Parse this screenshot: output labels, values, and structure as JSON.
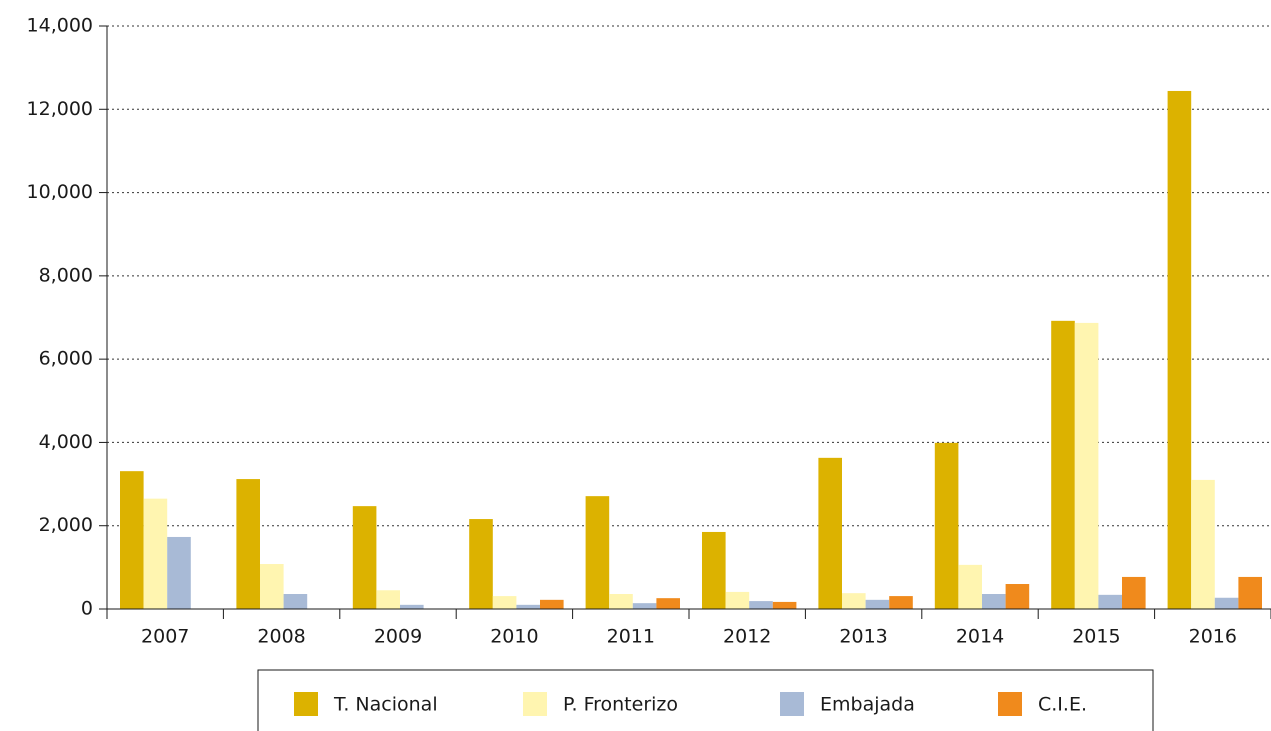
{
  "chart_data": {
    "type": "bar",
    "categories": [
      "2007",
      "2008",
      "2009",
      "2010",
      "2011",
      "2012",
      "2013",
      "2014",
      "2015",
      "2016"
    ],
    "series": [
      {
        "name": "T. Nacional",
        "color": "#dcb200",
        "values": [
          3310,
          3120,
          2470,
          2160,
          2710,
          1850,
          3630,
          3990,
          6920,
          12440
        ]
      },
      {
        "name": "P. Fronterizo",
        "color": "#fff5b0",
        "values": [
          2650,
          1080,
          450,
          310,
          360,
          410,
          380,
          1060,
          6870,
          3100
        ]
      },
      {
        "name": "Embajada",
        "color": "#a8bad6",
        "values": [
          1730,
          360,
          100,
          100,
          140,
          190,
          220,
          360,
          340,
          270
        ]
      },
      {
        "name": "C.I.E.",
        "color": "#f08a1c",
        "values": [
          0,
          0,
          0,
          220,
          260,
          170,
          310,
          600,
          770,
          770
        ]
      }
    ],
    "ylim": [
      0,
      14000
    ],
    "yticks": [
      0,
      {
        "value": 2000,
        "label": "2,000"
      },
      {
        "value": 4000,
        "label": "4,000"
      },
      {
        "value": 6000,
        "label": "6,000"
      },
      {
        "value": 8000,
        "label": "8,000"
      },
      {
        "value": 10000,
        "label": "10,000"
      },
      {
        "value": 12000,
        "label": "12,000"
      },
      {
        "value": 14000,
        "label": "14,000"
      }
    ],
    "grid": true,
    "legend": "bottom"
  }
}
